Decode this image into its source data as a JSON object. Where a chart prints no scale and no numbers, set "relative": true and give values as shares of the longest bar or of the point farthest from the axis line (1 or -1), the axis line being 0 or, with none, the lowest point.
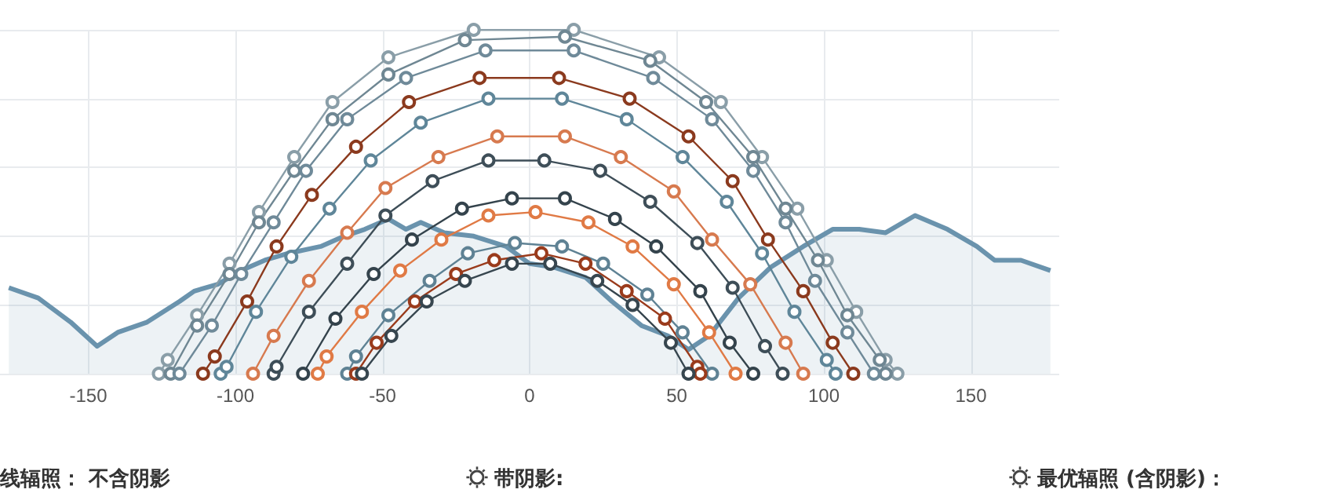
{
  "chart_data": {
    "type": "line",
    "relative": true,
    "xlim": [
      -180,
      180
    ],
    "xticks": [
      -150,
      -100,
      -50,
      0,
      50,
      100,
      150
    ],
    "grid": true,
    "marker": "circle",
    "annotations": [
      "线辐照： 不含阴影",
      "带阴影:",
      "最优辐照 (含阴影)："
    ],
    "series": [
      {
        "type": "area",
        "marker": "none",
        "color": "#6a93ad",
        "x": [
          -177,
          -167,
          -156,
          -147,
          -140,
          -130,
          -119,
          -114,
          -106,
          -98,
          -90,
          -82,
          -71,
          -63,
          -56,
          -48,
          -42,
          -37,
          -29,
          -19,
          -8,
          0,
          8,
          19,
          28,
          38,
          47,
          54,
          61,
          71,
          82,
          93,
          103,
          112,
          121,
          131,
          142,
          152,
          158,
          167,
          177
        ],
        "values": [
          0.25,
          0.22,
          0.15,
          0.08,
          0.12,
          0.15,
          0.21,
          0.24,
          0.26,
          0.3,
          0.33,
          0.35,
          0.37,
          0.4,
          0.42,
          0.45,
          0.42,
          0.44,
          0.41,
          0.4,
          0.37,
          0.32,
          0.31,
          0.28,
          0.21,
          0.14,
          0.11,
          0.07,
          0.11,
          0.22,
          0.31,
          0.37,
          0.42,
          0.42,
          0.41,
          0.46,
          0.42,
          0.37,
          0.33,
          0.33,
          0.3
        ]
      },
      {
        "color": "#8a9ea8",
        "x": [
          -126,
          -123,
          -113,
          -102,
          -92,
          -80,
          -67,
          -48,
          -19,
          15,
          44,
          65,
          79,
          91,
          101,
          111,
          121,
          125
        ],
        "values": [
          0,
          0.04,
          0.17,
          0.32,
          0.47,
          0.63,
          0.79,
          0.92,
          1,
          1,
          0.92,
          0.79,
          0.63,
          0.48,
          0.33,
          0.18,
          0.04,
          0
        ]
      },
      {
        "color": "#6f8793",
        "x": [
          -122,
          -113,
          -102,
          -92,
          -80,
          -67,
          -48,
          -22,
          12,
          41,
          60,
          76,
          87,
          98,
          108,
          119,
          121
        ],
        "values": [
          0,
          0.14,
          0.29,
          0.44,
          0.59,
          0.74,
          0.87,
          0.97,
          0.98,
          0.91,
          0.79,
          0.63,
          0.48,
          0.33,
          0.17,
          0.04,
          0
        ]
      },
      {
        "color": "#6f8a99",
        "x": [
          -119,
          -108,
          -98,
          -87,
          -76,
          -62,
          -42,
          -15,
          15,
          42,
          62,
          76,
          87,
          97,
          108,
          117
        ],
        "values": [
          0,
          0.14,
          0.29,
          0.44,
          0.59,
          0.74,
          0.86,
          0.94,
          0.94,
          0.86,
          0.74,
          0.59,
          0.44,
          0.27,
          0.12,
          0
        ]
      },
      {
        "color": "#8b3a1e",
        "x": [
          -111,
          -107,
          -96,
          -86,
          -74,
          -59,
          -41,
          -17,
          10,
          34,
          54,
          69,
          81,
          93,
          103,
          110
        ],
        "values": [
          0,
          0.05,
          0.21,
          0.37,
          0.52,
          0.66,
          0.79,
          0.86,
          0.86,
          0.8,
          0.69,
          0.56,
          0.39,
          0.24,
          0.09,
          0
        ]
      },
      {
        "color": "#5f8699",
        "x": [
          -105,
          -103,
          -93,
          -81,
          -68,
          -54,
          -37,
          -14,
          11,
          33,
          52,
          67,
          79,
          90,
          101,
          104
        ],
        "values": [
          0,
          0.02,
          0.18,
          0.34,
          0.48,
          0.62,
          0.73,
          0.8,
          0.8,
          0.74,
          0.63,
          0.5,
          0.35,
          0.18,
          0.04,
          0
        ]
      },
      {
        "color": "#d77a4f",
        "x": [
          -94,
          -87,
          -75,
          -62,
          -49,
          -31,
          -11,
          12,
          31,
          49,
          62,
          75,
          87,
          93
        ],
        "values": [
          0,
          0.11,
          0.27,
          0.41,
          0.54,
          0.63,
          0.69,
          0.69,
          0.63,
          0.53,
          0.39,
          0.26,
          0.09,
          0
        ]
      },
      {
        "color": "#3e4e58",
        "x": [
          -87,
          -86,
          -75,
          -62,
          -49,
          -33,
          -14,
          5,
          24,
          41,
          57,
          69,
          80,
          86
        ],
        "values": [
          0,
          0.02,
          0.18,
          0.32,
          0.46,
          0.56,
          0.62,
          0.62,
          0.59,
          0.5,
          0.38,
          0.25,
          0.08,
          0
        ]
      },
      {
        "color": "#34434c",
        "x": [
          -77,
          -66,
          -53,
          -40,
          -23,
          -6,
          12,
          29,
          43,
          58,
          68,
          76
        ],
        "values": [
          0,
          0.16,
          0.29,
          0.39,
          0.48,
          0.51,
          0.51,
          0.45,
          0.37,
          0.24,
          0.09,
          0
        ]
      },
      {
        "color": "#e07a45",
        "x": [
          -72,
          -69,
          -57,
          -44,
          -30,
          -14,
          2,
          20,
          35,
          49,
          61,
          70
        ],
        "values": [
          0,
          0.05,
          0.18,
          0.3,
          0.39,
          0.46,
          0.47,
          0.44,
          0.37,
          0.26,
          0.12,
          0
        ]
      },
      {
        "color": "#5f8294",
        "x": [
          -62,
          -59,
          -48,
          -34,
          -21,
          -5,
          11,
          25,
          40,
          52,
          62
        ],
        "values": [
          0,
          0.05,
          0.17,
          0.27,
          0.35,
          0.38,
          0.37,
          0.32,
          0.23,
          0.12,
          0
        ]
      },
      {
        "color": "#9a3b1c",
        "x": [
          -59,
          -52,
          -39,
          -25,
          -12,
          4,
          19,
          33,
          46,
          57,
          58
        ],
        "values": [
          0,
          0.09,
          0.21,
          0.29,
          0.33,
          0.35,
          0.32,
          0.24,
          0.16,
          0.02,
          0
        ]
      },
      {
        "color": "#37464f",
        "x": [
          -57,
          -47,
          -35,
          -22,
          -6,
          7,
          23,
          35,
          48,
          54
        ],
        "values": [
          0,
          0.11,
          0.21,
          0.27,
          0.32,
          0.32,
          0.27,
          0.2,
          0.09,
          0
        ]
      }
    ]
  }
}
